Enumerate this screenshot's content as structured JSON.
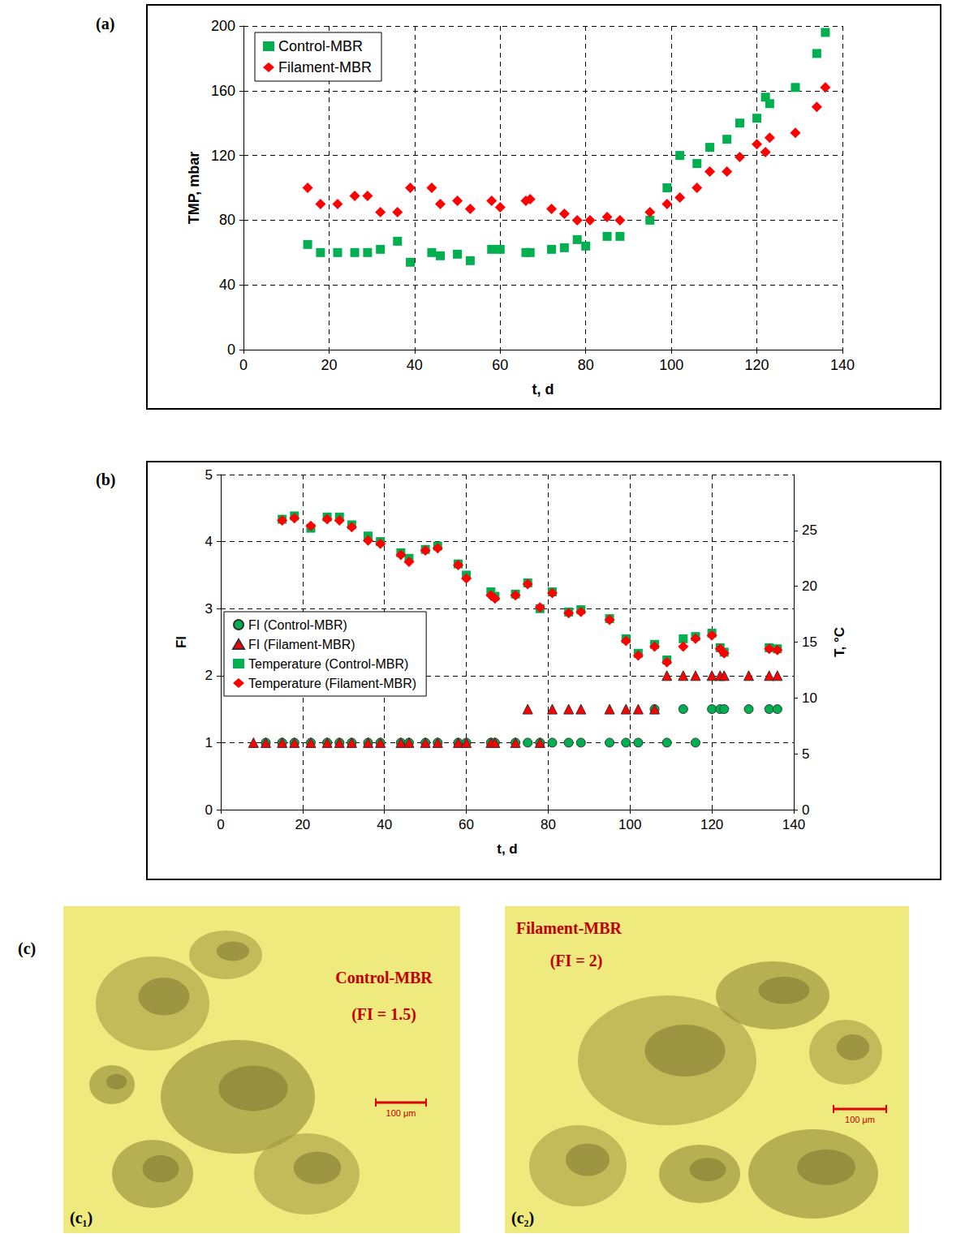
{
  "chart_data": [
    {
      "label": "(a)",
      "type": "scatter",
      "x_label": "t, d",
      "y_label": "TMP, mbar",
      "xlim": [
        0,
        140
      ],
      "xticks": [
        0,
        20,
        40,
        60,
        80,
        100,
        120,
        140
      ],
      "ylim": [
        0,
        200
      ],
      "yticks": [
        0,
        40,
        80,
        120,
        160,
        200
      ],
      "grid": true,
      "legend": "upper left",
      "series": [
        {
          "name": "Control-MBR",
          "color": "#00b050",
          "marker": "square",
          "x": [
            15,
            18,
            22,
            26,
            29,
            32,
            36,
            39,
            44,
            46,
            50,
            53,
            58,
            60,
            66,
            67,
            72,
            75,
            78,
            80,
            85,
            88,
            95,
            99,
            102,
            106,
            109,
            113,
            116,
            120,
            122,
            123,
            129,
            134,
            136
          ],
          "values": [
            65,
            60,
            60,
            60,
            60,
            62,
            67,
            54,
            60,
            58,
            59,
            55,
            62,
            62,
            60,
            60,
            62,
            63,
            68,
            64,
            70,
            70,
            80,
            100,
            120,
            115,
            125,
            130,
            140,
            143,
            156,
            152,
            162,
            183,
            196
          ]
        },
        {
          "name": "Filament-MBR",
          "color": "#ff0000",
          "marker": "diamond",
          "x": [
            15,
            18,
            22,
            26,
            29,
            32,
            36,
            39,
            44,
            46,
            50,
            53,
            58,
            60,
            66,
            67,
            72,
            75,
            78,
            81,
            85,
            88,
            95,
            99,
            102,
            106,
            109,
            113,
            116,
            120,
            122,
            123,
            129,
            134,
            136
          ],
          "values": [
            100,
            90,
            90,
            95,
            95,
            85,
            85,
            100,
            100,
            90,
            92,
            87,
            92,
            88,
            92,
            93,
            87,
            84,
            80,
            80,
            82,
            80,
            85,
            90,
            94,
            100,
            110,
            110,
            119,
            127,
            122,
            131,
            134,
            150,
            162
          ]
        }
      ]
    },
    {
      "label": "(b)",
      "type": "scatter",
      "x_label": "t, d",
      "y_label": "FI",
      "y2_label": "T, °C",
      "xlim": [
        0,
        140
      ],
      "xticks": [
        0,
        20,
        40,
        60,
        80,
        100,
        120,
        140
      ],
      "ylim": [
        0,
        5
      ],
      "yticks": [
        0,
        1,
        2,
        3,
        4,
        5
      ],
      "y2lim": [
        0,
        30
      ],
      "y2ticks": [
        0,
        5,
        10,
        15,
        20,
        25
      ],
      "grid": true,
      "legend": "center left",
      "series": [
        {
          "name": "FI (Control-MBR)",
          "color": "#00b050",
          "marker": "circle",
          "x": [
            11,
            15,
            18,
            22,
            26,
            29,
            32,
            36,
            39,
            44,
            46,
            50,
            53,
            58,
            60,
            66,
            67,
            72,
            75,
            78,
            81,
            85,
            88,
            95,
            99,
            102,
            106,
            109,
            113,
            116,
            120,
            122,
            123,
            129,
            134,
            136
          ],
          "values": [
            1,
            1,
            1,
            1,
            1,
            1,
            1,
            1,
            1,
            1,
            1,
            1,
            1,
            1,
            1,
            1,
            1,
            1,
            1,
            1,
            1,
            1,
            1,
            1,
            1,
            1,
            1.5,
            1,
            1.5,
            1,
            1.5,
            1.5,
            1.5,
            1.5,
            1.5,
            1.5
          ]
        },
        {
          "name": "FI (Filament-MBR)",
          "color": "#ff0000",
          "marker": "triangle",
          "x": [
            8,
            11,
            15,
            18,
            22,
            26,
            29,
            32,
            36,
            39,
            44,
            46,
            50,
            53,
            58,
            60,
            66,
            67,
            72,
            75,
            78,
            81,
            85,
            88,
            95,
            99,
            102,
            106,
            109,
            113,
            116,
            120,
            122,
            123,
            129,
            134,
            136
          ],
          "values": [
            1,
            1,
            1,
            1,
            1,
            1,
            1,
            1,
            1,
            1,
            1,
            1,
            1,
            1,
            1,
            1,
            1,
            1,
            1,
            1.5,
            1,
            1.5,
            1.5,
            1.5,
            1.5,
            1.5,
            1.5,
            1.5,
            2,
            2,
            2,
            2,
            2,
            2,
            2,
            2,
            2
          ]
        },
        {
          "name": "Temperature (Control-MBR)",
          "color": "#00b050",
          "marker": "square",
          "axis": "y2",
          "x": [
            15,
            18,
            22,
            26,
            29,
            32,
            36,
            39,
            44,
            46,
            50,
            53,
            58,
            60,
            66,
            67,
            72,
            75,
            78,
            81,
            85,
            88,
            95,
            99,
            102,
            106,
            109,
            113,
            116,
            120,
            122,
            123,
            134,
            136
          ],
          "values": [
            26.0,
            26.3,
            25.2,
            26.2,
            26.2,
            25.5,
            24.5,
            24.0,
            23.0,
            22.5,
            23.3,
            23.6,
            22.0,
            21.0,
            19.5,
            19.1,
            19.3,
            20.3,
            18.0,
            19.5,
            17.7,
            17.9,
            17.1,
            15.3,
            14.0,
            14.8,
            13.4,
            15.3,
            15.5,
            15.8,
            14.5,
            14.1,
            14.5,
            14.4
          ]
        },
        {
          "name": "Temperature (Filament-MBR)",
          "color": "#ff0000",
          "marker": "diamond",
          "axis": "y2",
          "x": [
            15,
            18,
            22,
            26,
            29,
            32,
            36,
            39,
            44,
            46,
            50,
            53,
            58,
            60,
            66,
            67,
            72,
            75,
            78,
            81,
            85,
            88,
            95,
            99,
            102,
            106,
            109,
            113,
            116,
            120,
            122,
            123,
            134,
            136
          ],
          "values": [
            25.9,
            26.1,
            25.4,
            26.0,
            25.9,
            25.3,
            24.1,
            23.8,
            22.8,
            22.2,
            23.2,
            23.4,
            21.9,
            20.7,
            19.2,
            18.9,
            19.2,
            20.2,
            18.1,
            19.4,
            17.6,
            17.7,
            17.0,
            15.1,
            13.8,
            14.6,
            13.2,
            14.6,
            15.3,
            15.6,
            14.4,
            14.0,
            14.4,
            14.3
          ]
        }
      ]
    }
  ],
  "micrographs": {
    "label": "(c)",
    "panels": [
      {
        "label": "(c₁)",
        "title": "Control-MBR",
        "subtitle": "(FI = 1.5)",
        "scale_bar": "100 μm"
      },
      {
        "label": "(c₂)",
        "title": "Filament-MBR",
        "subtitle": "(FI = 2)",
        "scale_bar": "100 μm"
      }
    ]
  }
}
